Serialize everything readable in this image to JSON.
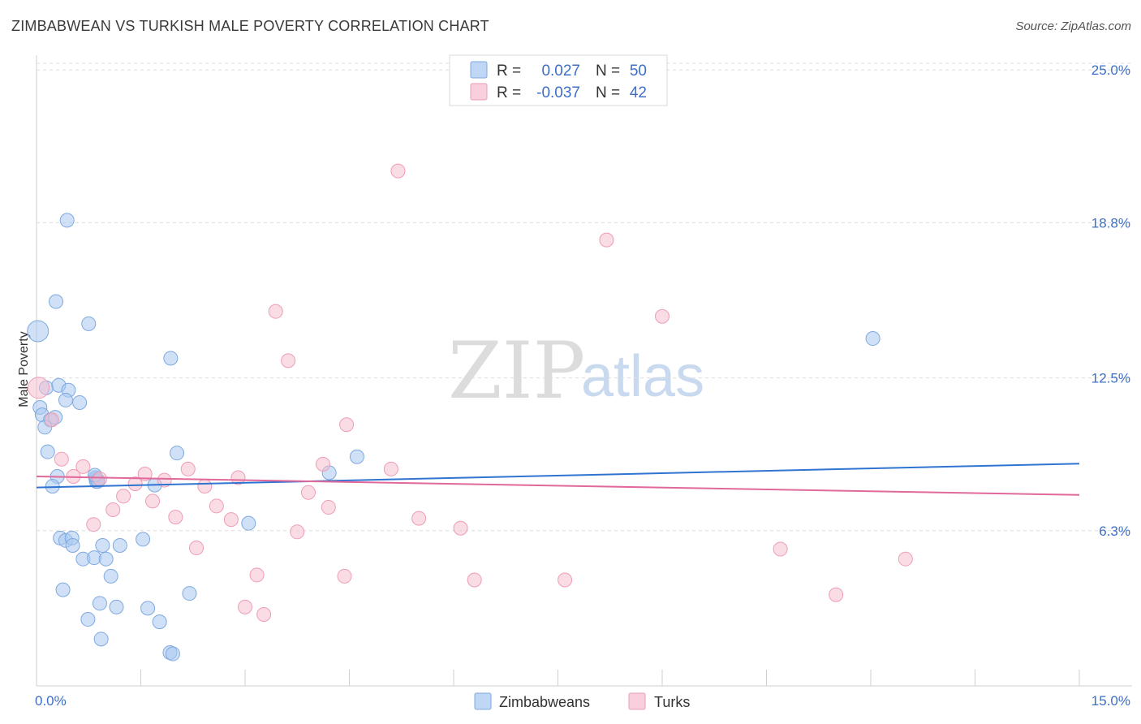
{
  "header": {
    "title": "ZIMBABWEAN VS TURKISH MALE POVERTY CORRELATION CHART",
    "source": "Source: ZipAtlas.com"
  },
  "watermark": {
    "zip": "ZIP",
    "atlas": "atlas"
  },
  "colors": {
    "blue_fill": "#a9c8f0",
    "blue_stroke": "#7ea9e0",
    "blue_line": "#2f74d0",
    "pink_fill": "#f6bfd0",
    "pink_stroke": "#ee9db6",
    "pink_line": "#e0689a",
    "grid": "#dcdcdc",
    "axis_text": "#3d6fc7"
  },
  "legend": {
    "rows": [
      {
        "r_label": "R =",
        "r_value": "0.027",
        "n_label": "N =",
        "n_value": "50"
      },
      {
        "r_label": "R =",
        "r_value": "-0.037",
        "n_label": "N =",
        "n_value": "42"
      }
    ]
  },
  "chart_data": {
    "type": "scatter",
    "title": "ZIMBABWEAN VS TURKISH MALE POVERTY CORRELATION CHART",
    "xlabel": "",
    "ylabel": "Male Poverty",
    "xlim": [
      0,
      15
    ],
    "ylim": [
      0,
      25.6
    ],
    "x_tick_labels": [
      "0.0%",
      "15.0%"
    ],
    "y_ticks": [
      6.3,
      12.5,
      18.8,
      25.0
    ],
    "y_tick_labels": [
      "6.3%",
      "12.5%",
      "18.8%",
      "25.0%"
    ],
    "grid": true,
    "legend_position": "top-center",
    "series": [
      {
        "name": "Zimbabweans",
        "r": 0.027,
        "n": 50,
        "trend": {
          "x": [
            0,
            15
          ],
          "y": [
            8.05,
            9.02
          ]
        },
        "points": [
          {
            "x": 0.02,
            "y": 14.4,
            "big": true
          },
          {
            "x": 0.44,
            "y": 18.9
          },
          {
            "x": 0.28,
            "y": 15.6
          },
          {
            "x": 0.75,
            "y": 14.7
          },
          {
            "x": 1.93,
            "y": 13.3
          },
          {
            "x": 0.14,
            "y": 12.1
          },
          {
            "x": 0.32,
            "y": 12.2
          },
          {
            "x": 0.46,
            "y": 12.0
          },
          {
            "x": 0.42,
            "y": 11.6
          },
          {
            "x": 0.62,
            "y": 11.5
          },
          {
            "x": 0.05,
            "y": 11.3
          },
          {
            "x": 0.08,
            "y": 11.0
          },
          {
            "x": 0.2,
            "y": 10.8
          },
          {
            "x": 0.27,
            "y": 10.9
          },
          {
            "x": 0.12,
            "y": 10.5
          },
          {
            "x": 0.16,
            "y": 9.5
          },
          {
            "x": 2.02,
            "y": 9.45
          },
          {
            "x": 4.61,
            "y": 9.3
          },
          {
            "x": 0.86,
            "y": 8.4
          },
          {
            "x": 0.3,
            "y": 8.5
          },
          {
            "x": 0.23,
            "y": 8.1
          },
          {
            "x": 0.85,
            "y": 8.45
          },
          {
            "x": 0.86,
            "y": 8.3
          },
          {
            "x": 0.88,
            "y": 8.35
          },
          {
            "x": 1.7,
            "y": 8.15
          },
          {
            "x": 4.21,
            "y": 8.65
          },
          {
            "x": 0.88,
            "y": 8.3
          },
          {
            "x": 0.84,
            "y": 8.55
          },
          {
            "x": 3.05,
            "y": 6.6
          },
          {
            "x": 0.34,
            "y": 6.0
          },
          {
            "x": 0.42,
            "y": 5.9
          },
          {
            "x": 0.51,
            "y": 6.0
          },
          {
            "x": 0.52,
            "y": 5.7
          },
          {
            "x": 0.95,
            "y": 5.7
          },
          {
            "x": 1.2,
            "y": 5.7
          },
          {
            "x": 1.53,
            "y": 5.95
          },
          {
            "x": 0.67,
            "y": 5.15
          },
          {
            "x": 0.83,
            "y": 5.2
          },
          {
            "x": 1.0,
            "y": 5.15
          },
          {
            "x": 1.07,
            "y": 4.45
          },
          {
            "x": 0.38,
            "y": 3.9
          },
          {
            "x": 2.2,
            "y": 3.75
          },
          {
            "x": 0.91,
            "y": 3.35
          },
          {
            "x": 1.15,
            "y": 3.2
          },
          {
            "x": 1.6,
            "y": 3.15
          },
          {
            "x": 0.74,
            "y": 2.7
          },
          {
            "x": 1.77,
            "y": 2.6
          },
          {
            "x": 0.93,
            "y": 1.9
          },
          {
            "x": 1.92,
            "y": 1.35
          },
          {
            "x": 1.96,
            "y": 1.3
          },
          {
            "x": 12.03,
            "y": 14.1
          }
        ]
      },
      {
        "name": "Turks",
        "r": -0.037,
        "n": 42,
        "trend": {
          "x": [
            0,
            15
          ],
          "y": [
            8.5,
            7.75
          ]
        },
        "points": [
          {
            "x": 0.03,
            "y": 12.1,
            "big": true
          },
          {
            "x": 5.2,
            "y": 20.9
          },
          {
            "x": 8.2,
            "y": 18.1
          },
          {
            "x": 3.44,
            "y": 15.2
          },
          {
            "x": 9.0,
            "y": 15.0
          },
          {
            "x": 3.62,
            "y": 13.2
          },
          {
            "x": 4.46,
            "y": 10.6
          },
          {
            "x": 0.22,
            "y": 10.8
          },
          {
            "x": 0.36,
            "y": 9.2
          },
          {
            "x": 0.67,
            "y": 8.9
          },
          {
            "x": 4.12,
            "y": 9.0
          },
          {
            "x": 5.1,
            "y": 8.8
          },
          {
            "x": 2.18,
            "y": 8.8
          },
          {
            "x": 1.56,
            "y": 8.6
          },
          {
            "x": 2.9,
            "y": 8.45
          },
          {
            "x": 1.84,
            "y": 8.35
          },
          {
            "x": 1.42,
            "y": 8.2
          },
          {
            "x": 2.42,
            "y": 8.1
          },
          {
            "x": 0.91,
            "y": 8.4
          },
          {
            "x": 0.53,
            "y": 8.5
          },
          {
            "x": 3.91,
            "y": 7.85
          },
          {
            "x": 1.25,
            "y": 7.7
          },
          {
            "x": 1.67,
            "y": 7.5
          },
          {
            "x": 1.1,
            "y": 7.15
          },
          {
            "x": 2.59,
            "y": 7.3
          },
          {
            "x": 4.2,
            "y": 7.25
          },
          {
            "x": 2.0,
            "y": 6.85
          },
          {
            "x": 2.8,
            "y": 6.75
          },
          {
            "x": 5.5,
            "y": 6.8
          },
          {
            "x": 0.82,
            "y": 6.55
          },
          {
            "x": 6.1,
            "y": 6.4
          },
          {
            "x": 3.75,
            "y": 6.25
          },
          {
            "x": 2.3,
            "y": 5.6
          },
          {
            "x": 10.7,
            "y": 5.55
          },
          {
            "x": 12.5,
            "y": 5.15
          },
          {
            "x": 3.17,
            "y": 4.5
          },
          {
            "x": 4.43,
            "y": 4.45
          },
          {
            "x": 6.3,
            "y": 4.3
          },
          {
            "x": 7.6,
            "y": 4.3
          },
          {
            "x": 11.5,
            "y": 3.7
          },
          {
            "x": 3.0,
            "y": 3.2
          },
          {
            "x": 3.27,
            "y": 2.9
          }
        ]
      }
    ]
  }
}
